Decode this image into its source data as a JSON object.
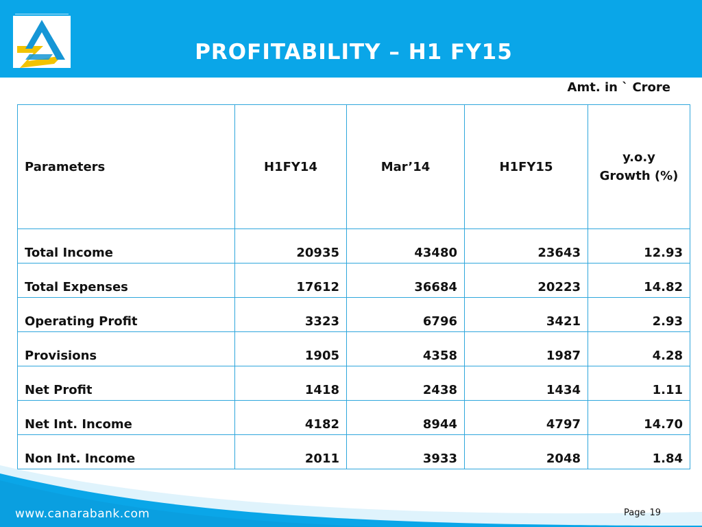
{
  "title": "PROFITABILITY – H1 FY15",
  "amount_note": "Amt. in ` Crore",
  "table": {
    "headers": {
      "parameters": "Parameters",
      "h1fy14": "H1FY14",
      "mar14": "Mar’14",
      "h1fy15": "H1FY15",
      "growth_line1": "y.o.y",
      "growth_line2": "Growth (%)"
    },
    "rows": [
      {
        "label": "Total  Income",
        "h1fy14": "20935",
        "mar14": "43480",
        "h1fy15": "23643",
        "growth": "12.93"
      },
      {
        "label": "Total  Expenses",
        "h1fy14": "17612",
        "mar14": "36684",
        "h1fy15": "20223",
        "growth": "14.82"
      },
      {
        "label": "Operating Profit",
        "h1fy14": "3323",
        "mar14": "6796",
        "h1fy15": "3421",
        "growth": "2.93"
      },
      {
        "label": "Provisions",
        "h1fy14": "1905",
        "mar14": "4358",
        "h1fy15": "1987",
        "growth": "4.28"
      },
      {
        "label": "Net Profit",
        "h1fy14": "1418",
        "mar14": "2438",
        "h1fy15": "1434",
        "growth": "1.11"
      },
      {
        "label": "Net Int. Income",
        "h1fy14": "4182",
        "mar14": "8944",
        "h1fy15": "4797",
        "growth": "14.70"
      },
      {
        "label": "Non Int. Income",
        "h1fy14": "2011",
        "mar14": "3933",
        "h1fy15": "2048",
        "growth": "1.84"
      }
    ]
  },
  "footer": {
    "url": "www.canarabank.com",
    "page_label": "Page",
    "page_number": "19"
  },
  "colors": {
    "header_blue": "#0aa6e8",
    "logo_yellow": "#f2c300",
    "logo_blue": "#1596d6",
    "table_border": "#2ea6dc"
  }
}
